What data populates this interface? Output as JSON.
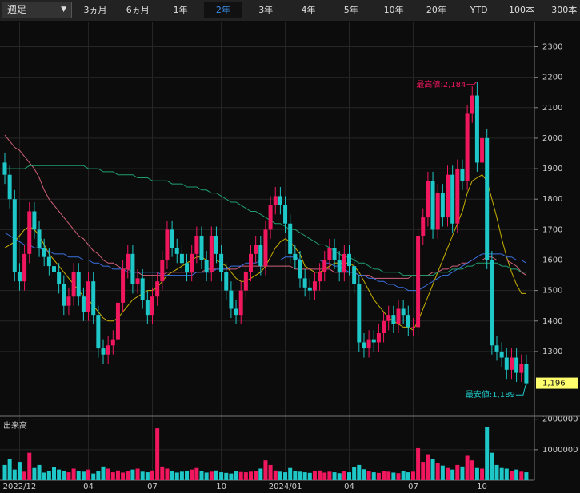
{
  "toolbar": {
    "interval": "週足",
    "ranges": [
      "3ヵ月",
      "6ヵ月",
      "1年",
      "2年",
      "3年",
      "4年",
      "5年",
      "10年",
      "20年",
      "YTD",
      "100本",
      "300本"
    ],
    "active_index": 3
  },
  "chart_data": [
    {
      "type": "candlestick",
      "categories": [
        null,
        null,
        null,
        "2022/12",
        null,
        null,
        null,
        null,
        null,
        null,
        null,
        null,
        null,
        null,
        null,
        null,
        null,
        "04",
        null,
        null,
        null,
        null,
        null,
        null,
        null,
        null,
        null,
        null,
        null,
        null,
        "07",
        null,
        null,
        null,
        null,
        null,
        null,
        null,
        null,
        null,
        null,
        null,
        null,
        null,
        "10",
        null,
        null,
        null,
        null,
        null,
        null,
        null,
        null,
        null,
        null,
        null,
        null,
        "2024/01",
        null,
        null,
        null,
        null,
        null,
        null,
        null,
        null,
        null,
        null,
        null,
        null,
        "04",
        null,
        null,
        null,
        null,
        null,
        null,
        null,
        null,
        null,
        null,
        null,
        null,
        "07",
        null,
        null,
        null,
        null,
        null,
        null,
        null,
        null,
        null,
        null,
        null,
        null,
        null,
        "10",
        null,
        null,
        null,
        null,
        null,
        null,
        null,
        null,
        null
      ],
      "open": [
        1920,
        1880,
        1800,
        1560,
        1530,
        1620,
        1760,
        1700,
        1640,
        1610,
        1580,
        1560,
        1520,
        1450,
        1480,
        1560,
        1480,
        1430,
        1530,
        1420,
        1310,
        1290,
        1320,
        1340,
        1460,
        1570,
        1620,
        1520,
        1540,
        1470,
        1420,
        1480,
        1530,
        1600,
        1700,
        1640,
        1620,
        1590,
        1560,
        1620,
        1680,
        1600,
        1560,
        1680,
        1620,
        1560,
        1500,
        1440,
        1420,
        1500,
        1560,
        1620,
        1650,
        1580,
        1700,
        1780,
        1810,
        1780,
        1720,
        1620,
        1600,
        1540,
        1510,
        1500,
        1530,
        1560,
        1600,
        1640,
        1600,
        1560,
        1620,
        1580,
        1520,
        1330,
        1310,
        1340,
        1330,
        1360,
        1400,
        1420,
        1390,
        1440,
        1420,
        1380,
        1380,
        1680,
        1740,
        1860,
        1700,
        1820,
        1740,
        1880,
        1720,
        1900,
        1860,
        2080,
        2140,
        1920,
        2000,
        1600,
        1320,
        1300,
        1280,
        1240,
        1280,
        1230,
        1260
      ],
      "high": [
        1950,
        1910,
        1830,
        1590,
        1650,
        1790,
        1790,
        1730,
        1670,
        1640,
        1610,
        1590,
        1550,
        1510,
        1590,
        1590,
        1510,
        1560,
        1560,
        1450,
        1340,
        1350,
        1370,
        1490,
        1600,
        1650,
        1650,
        1570,
        1570,
        1500,
        1510,
        1560,
        1630,
        1730,
        1730,
        1670,
        1650,
        1620,
        1650,
        1710,
        1710,
        1630,
        1710,
        1710,
        1650,
        1590,
        1530,
        1470,
        1530,
        1590,
        1650,
        1680,
        1680,
        1730,
        1810,
        1840,
        1840,
        1810,
        1750,
        1650,
        1630,
        1570,
        1540,
        1560,
        1590,
        1630,
        1670,
        1670,
        1630,
        1650,
        1650,
        1610,
        1550,
        1360,
        1370,
        1370,
        1390,
        1430,
        1450,
        1450,
        1470,
        1470,
        1450,
        1410,
        1710,
        1770,
        1890,
        1890,
        1850,
        1850,
        1910,
        1910,
        1930,
        1930,
        2110,
        2170,
        2184,
        2030,
        2030,
        1630,
        1350,
        1330,
        1310,
        1310,
        1310,
        1290,
        1290
      ],
      "low": [
        1850,
        1770,
        1530,
        1500,
        1500,
        1590,
        1670,
        1610,
        1580,
        1550,
        1530,
        1490,
        1420,
        1420,
        1450,
        1450,
        1400,
        1400,
        1390,
        1280,
        1260,
        1260,
        1290,
        1310,
        1430,
        1540,
        1490,
        1490,
        1440,
        1390,
        1390,
        1450,
        1500,
        1570,
        1610,
        1590,
        1560,
        1530,
        1530,
        1590,
        1570,
        1530,
        1530,
        1590,
        1530,
        1470,
        1410,
        1390,
        1390,
        1470,
        1530,
        1590,
        1550,
        1550,
        1670,
        1750,
        1750,
        1690,
        1590,
        1570,
        1510,
        1480,
        1470,
        1470,
        1500,
        1530,
        1570,
        1570,
        1530,
        1530,
        1550,
        1490,
        1300,
        1280,
        1280,
        1300,
        1300,
        1330,
        1370,
        1360,
        1360,
        1390,
        1350,
        1350,
        1350,
        1650,
        1710,
        1670,
        1670,
        1710,
        1710,
        1690,
        1690,
        1830,
        1830,
        2050,
        1890,
        1890,
        1570,
        1290,
        1270,
        1250,
        1210,
        1210,
        1200,
        1200,
        1189
      ],
      "close": [
        1880,
        1800,
        1560,
        1530,
        1620,
        1760,
        1700,
        1640,
        1610,
        1580,
        1560,
        1520,
        1450,
        1480,
        1560,
        1480,
        1430,
        1530,
        1420,
        1310,
        1290,
        1320,
        1340,
        1460,
        1570,
        1620,
        1520,
        1540,
        1470,
        1420,
        1480,
        1530,
        1600,
        1700,
        1640,
        1620,
        1590,
        1560,
        1620,
        1680,
        1600,
        1560,
        1680,
        1620,
        1560,
        1500,
        1440,
        1420,
        1500,
        1560,
        1620,
        1650,
        1580,
        1700,
        1780,
        1810,
        1780,
        1720,
        1620,
        1600,
        1540,
        1510,
        1500,
        1530,
        1560,
        1600,
        1640,
        1600,
        1560,
        1620,
        1580,
        1520,
        1330,
        1310,
        1340,
        1330,
        1360,
        1400,
        1420,
        1390,
        1440,
        1420,
        1380,
        1380,
        1680,
        1740,
        1860,
        1700,
        1820,
        1740,
        1880,
        1720,
        1900,
        1860,
        2080,
        2140,
        1920,
        2000,
        1600,
        1320,
        1300,
        1280,
        1240,
        1280,
        1230,
        1260,
        1196
      ],
      "up_color": "#f0175e",
      "down_color": "#1fc8c8",
      "series": [
        {
          "color": "#c8b000",
          "values": [
            1640,
            1650,
            1660,
            1680,
            1700,
            1710,
            1700,
            1680,
            1650,
            1620,
            1600,
            1580,
            1560,
            1540,
            1520,
            1500,
            1480,
            1470,
            1450,
            1430,
            1410,
            1400,
            1400,
            1410,
            1430,
            1450,
            1470,
            1480,
            1490,
            1500,
            1500,
            1510,
            1530,
            1550,
            1560,
            1570,
            1580,
            1590,
            1600,
            1610,
            1610,
            1600,
            1600,
            1600,
            1590,
            1580,
            1560,
            1540,
            1530,
            1530,
            1540,
            1550,
            1560,
            1580,
            1610,
            1640,
            1660,
            1670,
            1660,
            1640,
            1620,
            1580,
            1570,
            1560,
            1560,
            1570,
            1580,
            1590,
            1590,
            1590,
            1590,
            1580,
            1560,
            1530,
            1500,
            1470,
            1450,
            1430,
            1410,
            1400,
            1390,
            1380,
            1380,
            1370,
            1400,
            1440,
            1480,
            1520,
            1560,
            1600,
            1640,
            1680,
            1720,
            1760,
            1820,
            1860,
            1870,
            1880,
            1860,
            1800,
            1740,
            1670,
            1610,
            1560,
            1520,
            1490,
            1490
          ]
        },
        {
          "color": "#d0607a",
          "values": [
            2010,
            1990,
            1970,
            1960,
            1940,
            1920,
            1900,
            1870,
            1830,
            1800,
            1780,
            1760,
            1740,
            1720,
            1700,
            1680,
            1670,
            1650,
            1630,
            1620,
            1600,
            1590,
            1590,
            1580,
            1570,
            1570,
            1560,
            1560,
            1550,
            1550,
            1550,
            1550,
            1550,
            1560,
            1560,
            1560,
            1560,
            1560,
            1560,
            1560,
            1560,
            1570,
            1570,
            1570,
            1570,
            1570,
            1570,
            1570,
            1580,
            1580,
            1580,
            1580,
            1580,
            1580,
            1580,
            1580,
            1580,
            1580,
            1580,
            1570,
            1570,
            1570,
            1570,
            1570,
            1570,
            1570,
            1570,
            1560,
            1560,
            1560,
            1560,
            1560,
            1550,
            1550,
            1550,
            1540,
            1540,
            1540,
            1540,
            1540,
            1540,
            1540,
            1540,
            1550,
            1550,
            1550,
            1550,
            1560,
            1560,
            1570,
            1570,
            1580,
            1580,
            1590,
            1590,
            1600,
            1600,
            1600,
            1610,
            1610,
            1600,
            1600,
            1600,
            1590,
            1580,
            1560,
            1550
          ]
        },
        {
          "color": "#3a70e0",
          "values": [
            1690,
            1680,
            1670,
            1660,
            1650,
            1650,
            1640,
            1640,
            1630,
            1630,
            1620,
            1620,
            1620,
            1610,
            1610,
            1610,
            1600,
            1600,
            1590,
            1590,
            1580,
            1580,
            1570,
            1570,
            1570,
            1560,
            1560,
            1560,
            1560,
            1560,
            1560,
            1560,
            1550,
            1550,
            1550,
            1550,
            1550,
            1550,
            1550,
            1560,
            1560,
            1560,
            1560,
            1570,
            1570,
            1570,
            1580,
            1580,
            1580,
            1590,
            1590,
            1590,
            1600,
            1600,
            1600,
            1600,
            1600,
            1610,
            1610,
            1610,
            1600,
            1600,
            1600,
            1600,
            1600,
            1590,
            1590,
            1580,
            1580,
            1570,
            1560,
            1560,
            1550,
            1550,
            1540,
            1540,
            1530,
            1530,
            1520,
            1520,
            1510,
            1510,
            1500,
            1500,
            1500,
            1510,
            1520,
            1530,
            1540,
            1550,
            1550,
            1560,
            1570,
            1580,
            1590,
            1600,
            1610,
            1620,
            1620,
            1620,
            1620,
            1620,
            1610,
            1610,
            1600,
            1600,
            1590
          ]
        },
        {
          "color": "#1f9e6e",
          "values": [
            1900,
            1900,
            1900,
            1900,
            1900,
            1910,
            1910,
            1910,
            1910,
            1910,
            1910,
            1910,
            1910,
            1910,
            1910,
            1910,
            1910,
            1900,
            1900,
            1900,
            1890,
            1890,
            1890,
            1880,
            1880,
            1880,
            1880,
            1870,
            1870,
            1870,
            1860,
            1860,
            1860,
            1860,
            1850,
            1850,
            1850,
            1840,
            1840,
            1840,
            1830,
            1830,
            1820,
            1820,
            1810,
            1800,
            1790,
            1790,
            1780,
            1770,
            1760,
            1760,
            1750,
            1740,
            1730,
            1720,
            1720,
            1710,
            1700,
            1700,
            1690,
            1680,
            1670,
            1660,
            1650,
            1650,
            1640,
            1630,
            1620,
            1610,
            1610,
            1600,
            1590,
            1590,
            1580,
            1570,
            1570,
            1560,
            1560,
            1560,
            1560,
            1550,
            1550,
            1550,
            1550,
            1550,
            1550,
            1550,
            1560,
            1560,
            1560,
            1570,
            1570,
            1570,
            1580,
            1580,
            1590,
            1590,
            1590,
            1590,
            1590,
            1580,
            1580,
            1570,
            1570,
            1560,
            1560
          ]
        }
      ],
      "ylim": [
        1090,
        2380
      ],
      "yticks": [
        1300,
        1400,
        1500,
        1600,
        1700,
        1800,
        1900,
        2000,
        2100,
        2200,
        2300
      ],
      "grid": true,
      "annotations": [
        {
          "text": "最高値:2,184",
          "value": 2184,
          "color": "#f0175e"
        },
        {
          "text": "最安値:1,189",
          "value": 1189,
          "color": "#1fc8c8"
        }
      ],
      "last_price": {
        "value": 1196,
        "label": "1,196"
      }
    },
    {
      "type": "bar",
      "title": "出来高",
      "values": [
        500000,
        700000,
        350000,
        600000,
        280000,
        900000,
        400000,
        500000,
        250000,
        300000,
        420000,
        350000,
        300000,
        260000,
        380000,
        300000,
        280000,
        350000,
        220000,
        300000,
        450000,
        380000,
        260000,
        320000,
        250000,
        300000,
        350000,
        380000,
        280000,
        260000,
        320000,
        1700000,
        450000,
        380000,
        300000,
        250000,
        280000,
        300000,
        350000,
        400000,
        300000,
        250000,
        280000,
        320000,
        260000,
        240000,
        220000,
        300000,
        270000,
        260000,
        280000,
        300000,
        380000,
        650000,
        500000,
        320000,
        280000,
        260000,
        400000,
        300000,
        280000,
        260000,
        240000,
        300000,
        320000,
        250000,
        280000,
        260000,
        230000,
        300000,
        260000,
        420000,
        500000,
        360000,
        300000,
        260000,
        240000,
        300000,
        280000,
        250000,
        230000,
        300000,
        260000,
        280000,
        1050000,
        600000,
        850000,
        700000,
        550000,
        480000,
        400000,
        350000,
        500000,
        450000,
        800000,
        650000,
        400000,
        380000,
        1750000,
        900000,
        500000,
        400000,
        380000,
        300000,
        350000,
        280000,
        260000
      ],
      "ylim": [
        0,
        2070000
      ],
      "yticks": [
        1000000,
        2000000
      ]
    }
  ]
}
